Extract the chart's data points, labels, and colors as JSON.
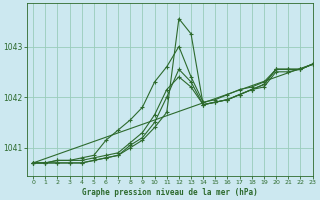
{
  "title": "Graphe pression niveau de la mer (hPa)",
  "bg_color": "#cce8f0",
  "grid_color": "#99ccbb",
  "line_color": "#2d6a2d",
  "xlim": [
    -0.5,
    23
  ],
  "ylim": [
    1040.45,
    1043.85
  ],
  "yticks": [
    1041,
    1042,
    1043
  ],
  "xticks": [
    0,
    1,
    2,
    3,
    4,
    5,
    6,
    7,
    8,
    9,
    10,
    11,
    12,
    13,
    14,
    15,
    16,
    17,
    18,
    19,
    20,
    21,
    22,
    23
  ],
  "series": [
    {
      "x": [
        0,
        1,
        2,
        3,
        4,
        5,
        6,
        7,
        8,
        9,
        10,
        11,
        12,
        13,
        14,
        15,
        16,
        17,
        18,
        19,
        20,
        21,
        22,
        23
      ],
      "y": [
        1040.7,
        1040.7,
        1040.7,
        1040.7,
        1040.7,
        1040.75,
        1040.8,
        1040.85,
        1041.0,
        1041.15,
        1041.4,
        1041.7,
        1043.55,
        1043.25,
        1041.85,
        1041.9,
        1041.95,
        1042.05,
        1042.15,
        1042.25,
        1042.55,
        1042.55,
        1042.55,
        1042.65
      ]
    },
    {
      "x": [
        0,
        1,
        2,
        3,
        4,
        5,
        6,
        7,
        8,
        9,
        10,
        11,
        12,
        13,
        14,
        15,
        16,
        17,
        18,
        19,
        20,
        21,
        22,
        23
      ],
      "y": [
        1040.7,
        1040.7,
        1040.7,
        1040.7,
        1040.7,
        1040.75,
        1040.8,
        1040.85,
        1041.05,
        1041.2,
        1041.5,
        1042.0,
        1042.55,
        1042.3,
        1041.85,
        1041.9,
        1041.95,
        1042.05,
        1042.15,
        1042.25,
        1042.55,
        1042.55,
        1042.55,
        1042.65
      ]
    },
    {
      "x": [
        0,
        1,
        2,
        3,
        4,
        5,
        6,
        7,
        8,
        9,
        10,
        11,
        12,
        13,
        14,
        15,
        16,
        17,
        18,
        19,
        20,
        21,
        22,
        23
      ],
      "y": [
        1040.7,
        1040.7,
        1040.75,
        1040.75,
        1040.75,
        1040.8,
        1040.85,
        1040.9,
        1041.1,
        1041.3,
        1041.65,
        1042.15,
        1042.4,
        1042.2,
        1041.85,
        1041.9,
        1041.95,
        1042.05,
        1042.15,
        1042.2,
        1042.5,
        1042.5,
        1042.55,
        1042.65
      ]
    },
    {
      "x": [
        0,
        1,
        2,
        3,
        4,
        5,
        6,
        7,
        8,
        9,
        10,
        11,
        12,
        13,
        14,
        15,
        16,
        17,
        18,
        19,
        20,
        21,
        22,
        23
      ],
      "y": [
        1040.7,
        1040.7,
        1040.75,
        1040.75,
        1040.8,
        1040.85,
        1041.15,
        1041.35,
        1041.55,
        1041.8,
        1042.3,
        1042.6,
        1043.0,
        1042.4,
        1041.9,
        1041.95,
        1042.05,
        1042.15,
        1042.2,
        1042.3,
        1042.55,
        1042.55,
        1042.55,
        1042.65
      ]
    },
    {
      "x": [
        0,
        23
      ],
      "y": [
        1040.7,
        1042.65
      ]
    }
  ]
}
